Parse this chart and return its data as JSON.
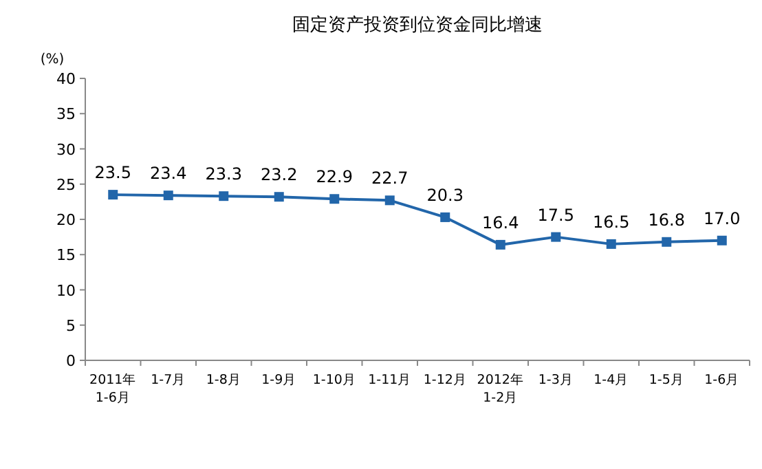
{
  "chart_data": {
    "type": "line",
    "title": "固定资产投资到位资金同比增速",
    "ylabel": "(%)",
    "categories": [
      "2011年\n1-6月",
      "1-7月",
      "1-8月",
      "1-9月",
      "1-10月",
      "1-11月",
      "1-12月",
      "2012年\n1-2月",
      "1-3月",
      "1-4月",
      "1-5月",
      "1-6月"
    ],
    "values": [
      23.5,
      23.4,
      23.3,
      23.2,
      22.9,
      22.7,
      20.3,
      16.4,
      17.5,
      16.5,
      16.8,
      17.0
    ],
    "value_labels": [
      "23.5",
      "23.4",
      "23.3",
      "23.2",
      "22.9",
      "22.7",
      "20.3",
      "16.4",
      "17.5",
      "16.5",
      "16.8",
      "17.0"
    ],
    "color": "#2266aa",
    "marker": "square",
    "ylim": [
      0,
      40
    ],
    "yticks": [
      0,
      5,
      10,
      15,
      20,
      25,
      30,
      35,
      40
    ]
  }
}
